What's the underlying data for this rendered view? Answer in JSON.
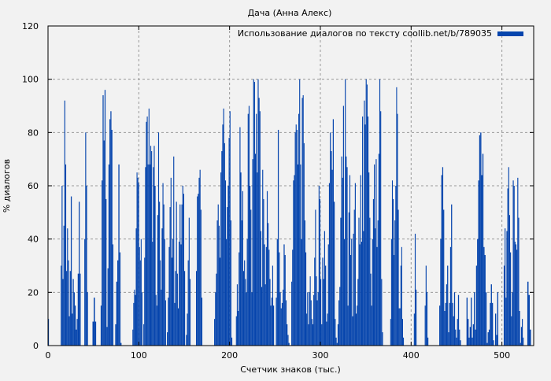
{
  "chart_data": {
    "type": "bar",
    "title": "Дача (Анна Алекс)",
    "xlabel": "Счетчик знаков (тыс.)",
    "ylabel": "% диалогов",
    "xlim": [
      0,
      535
    ],
    "ylim": [
      0,
      120
    ],
    "xticks": [
      0,
      100,
      200,
      300,
      400,
      500
    ],
    "yticks": [
      0,
      20,
      40,
      60,
      80,
      100,
      120
    ],
    "grid": true,
    "legend": {
      "position": "top-right",
      "label": "Использование диалогов по тексту coollib.net/b/789035"
    },
    "color": "#0645ad",
    "segments": [
      {
        "x0": 0,
        "x1": 0,
        "values": [
          10
        ]
      },
      {
        "x0": 14,
        "x1": 23,
        "values": [
          30,
          60,
          25,
          45,
          92,
          68,
          28,
          44,
          32,
          11
        ]
      },
      {
        "x0": 24,
        "x1": 35,
        "values": [
          28,
          56,
          12,
          25,
          20,
          15,
          6,
          10,
          27,
          54,
          27
        ]
      },
      {
        "x0": 40,
        "x1": 43,
        "values": [
          40,
          80,
          60,
          20
        ]
      },
      {
        "x0": 49,
        "x1": 52,
        "values": [
          9,
          18,
          9
        ]
      },
      {
        "x0": 58,
        "x1": 71,
        "values": [
          15,
          62,
          94,
          77,
          96,
          55,
          7,
          29,
          68,
          85,
          88,
          81,
          38
        ]
      },
      {
        "x0": 74,
        "x1": 80,
        "values": [
          8,
          24,
          32,
          68,
          35,
          1
        ]
      },
      {
        "x0": 93,
        "x1": 103,
        "values": [
          6,
          16,
          21,
          19,
          44,
          65,
          63,
          61,
          37,
          32,
          40,
          20
        ]
      },
      {
        "x0": 105,
        "x1": 129,
        "values": [
          8,
          33,
          67,
          84,
          86,
          68,
          89,
          68,
          75,
          73,
          39,
          67,
          75,
          60,
          19,
          15,
          49,
          80,
          54,
          32,
          21,
          44,
          61,
          53,
          40,
          17
        ]
      },
      {
        "x0": 131,
        "x1": 150,
        "values": [
          5,
          18,
          37,
          52,
          63,
          33,
          40,
          71,
          16,
          28,
          54,
          27,
          14,
          39,
          53,
          38,
          53,
          60,
          57,
          28
        ]
      },
      {
        "x0": 152,
        "x1": 156,
        "values": [
          4,
          12,
          32,
          48,
          25
        ]
      },
      {
        "x0": 163,
        "x1": 169,
        "values": [
          28,
          56,
          57,
          63,
          66,
          51,
          18
        ]
      },
      {
        "x0": 183,
        "x1": 202,
        "values": [
          10,
          20,
          27,
          47,
          53,
          45,
          33,
          65,
          73,
          83,
          89,
          76,
          62,
          40,
          52,
          60,
          78,
          88,
          47,
          3
        ]
      },
      {
        "x0": 207,
        "x1": 248,
        "values": [
          11,
          23,
          13,
          35,
          82,
          65,
          47,
          58,
          28,
          32,
          25,
          20,
          40,
          87,
          90,
          60,
          51,
          20,
          70,
          100,
          99,
          72,
          87,
          65,
          100,
          93,
          88,
          43,
          22,
          66,
          55,
          38,
          23,
          37,
          58,
          46,
          36,
          25,
          15,
          18,
          30,
          15
        ]
      },
      {
        "x0": 251,
        "x1": 265,
        "values": [
          18,
          40,
          81,
          35,
          20,
          14,
          16,
          21,
          38,
          34,
          17,
          8,
          4,
          1
        ]
      },
      {
        "x0": 268,
        "x1": 300,
        "values": [
          24,
          36,
          62,
          64,
          80,
          83,
          81,
          68,
          87,
          100,
          68,
          40,
          93,
          94,
          76,
          47,
          35,
          12,
          20,
          8,
          20,
          26,
          17,
          10,
          8,
          19,
          33,
          51,
          26,
          17,
          20,
          60,
          55,
          25
        ]
      },
      {
        "x0": 301,
        "x1": 318,
        "values": [
          8,
          33,
          25,
          43,
          30,
          9,
          12,
          38,
          61,
          80,
          73,
          66,
          85,
          54,
          10,
          3,
          1
        ]
      },
      {
        "x0": 319,
        "x1": 349,
        "values": [
          8,
          17,
          22,
          48,
          71,
          63,
          90,
          40,
          100,
          71,
          67,
          15,
          50,
          64,
          34,
          40,
          11,
          42,
          51,
          61,
          12,
          15,
          25,
          48,
          38,
          64,
          39,
          86,
          43,
          92,
          83
        ]
      },
      {
        "x0": 350,
        "x1": 368,
        "values": [
          100,
          98,
          86,
          65,
          48,
          27,
          15,
          40,
          55,
          68,
          44,
          70,
          37,
          47,
          72,
          100,
          88,
          25,
          5
        ]
      },
      {
        "x0": 377,
        "x1": 391,
        "values": [
          10,
          40,
          62,
          55,
          34,
          47,
          60,
          97,
          87,
          51,
          14,
          14,
          30,
          37,
          10,
          3
        ]
      },
      {
        "x0": 403,
        "x1": 405,
        "values": [
          12,
          42,
          21
        ]
      },
      {
        "x0": 415,
        "x1": 418,
        "values": [
          15,
          30,
          20,
          3
        ]
      },
      {
        "x0": 431,
        "x1": 455,
        "values": [
          15,
          40,
          64,
          67,
          51,
          13,
          16,
          23,
          30,
          5,
          16,
          37,
          53,
          16,
          11,
          20,
          6,
          3,
          10,
          19,
          6,
          2,
          0
        ]
      },
      {
        "x0": 461,
        "x1": 495,
        "values": [
          18,
          10,
          3,
          7,
          18,
          3,
          8,
          20,
          6,
          30,
          40,
          62,
          79,
          80,
          64,
          72,
          37,
          34,
          20,
          1,
          5,
          6,
          16,
          23,
          16,
          2,
          0,
          12,
          4,
          20
        ]
      },
      {
        "x0": 502,
        "x1": 523,
        "values": [
          30,
          44,
          18,
          43,
          59,
          67,
          49,
          35,
          11,
          20,
          62,
          60,
          39,
          38,
          36,
          63,
          48,
          13,
          1,
          7,
          10,
          3
        ]
      },
      {
        "x0": 528,
        "x1": 531,
        "values": [
          24,
          19,
          6
        ]
      }
    ]
  }
}
